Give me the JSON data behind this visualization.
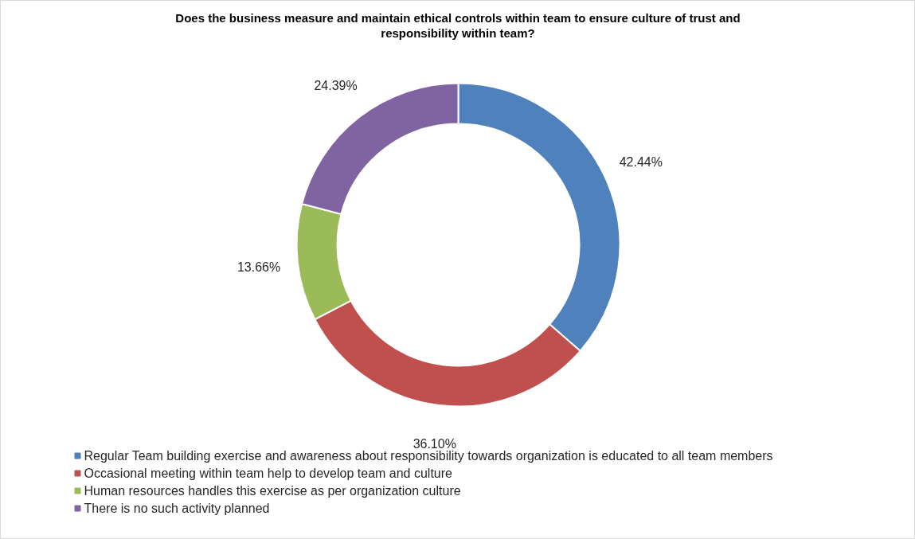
{
  "chart_data": {
    "type": "donut",
    "title": "Does the business measure and maintain ethical controls within team to ensure culture of trust and responsibility within team?",
    "categories": [
      "Regular Team building exercise and awareness about responsibility towards organization is educated to all team members",
      "Occasional meeting within team help to develop team and culture",
      "Human resources handles this exercise as per organization culture",
      "There is no such activity planned"
    ],
    "values": [
      42.44,
      36.1,
      13.66,
      24.39
    ],
    "colors": [
      "#4f81bd",
      "#c0504d",
      "#9bbb59",
      "#8064a2"
    ],
    "value_labels": [
      "42.44%",
      "36.10%",
      "13.66%",
      "24.39%"
    ],
    "legend": "bottom"
  }
}
